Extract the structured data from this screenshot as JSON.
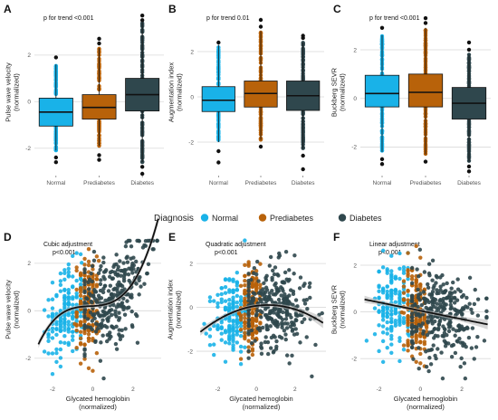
{
  "legend": {
    "title": "Diagnosis",
    "entries": [
      {
        "label": "Normal",
        "color": "#19b2e8"
      },
      {
        "label": "Prediabetes",
        "color": "#b8620a"
      },
      {
        "label": "Diabetes",
        "color": "#2f474d"
      }
    ]
  },
  "chart_data": [
    {
      "panel": "A",
      "type": "box",
      "annotation": "p for trend <0.001",
      "xlabel": "",
      "ylabel": "Pulse wave velocity\n(normalized)",
      "ylim": [
        -3.1,
        3.9
      ],
      "yticks": [
        -2,
        0,
        2
      ],
      "categories": [
        "Normal",
        "Prediabetes",
        "Diabetes"
      ],
      "boxes": [
        {
          "min": -2.1,
          "q1": -1.05,
          "median": -0.45,
          "q3": 0.15,
          "max": 1.6,
          "outliers": [
            -2.4,
            -2.6,
            1.9
          ]
        },
        {
          "min": -1.9,
          "q1": -0.75,
          "median": -0.25,
          "q3": 0.3,
          "max": 2.3,
          "outliers": [
            -2.3,
            -2.5,
            2.5,
            2.7
          ]
        },
        {
          "min": -2.6,
          "q1": -0.4,
          "median": 0.3,
          "q3": 1.0,
          "max": 3.4,
          "outliers": [
            -2.8,
            -3.1,
            3.5,
            3.7
          ]
        }
      ]
    },
    {
      "panel": "B",
      "type": "box",
      "annotation": "p for trend 0.01",
      "xlabel": "",
      "ylabel": "Augmentation index\n(normalized)",
      "ylim": [
        -3.4,
        3.8
      ],
      "yticks": [
        -2,
        0,
        2
      ],
      "categories": [
        "Normal",
        "Prediabetes",
        "Diabetes"
      ],
      "boxes": [
        {
          "min": -2.0,
          "q1": -0.65,
          "median": -0.15,
          "q3": 0.45,
          "max": 2.3,
          "outliers": [
            -2.4,
            -2.9,
            2.4
          ]
        },
        {
          "min": -1.9,
          "q1": -0.45,
          "median": 0.15,
          "q3": 0.7,
          "max": 2.9,
          "outliers": [
            -2.2,
            3.1,
            3.4
          ]
        },
        {
          "min": -2.3,
          "q1": -0.6,
          "median": 0.05,
          "q3": 0.7,
          "max": 2.4,
          "outliers": [
            -2.6,
            -3.2,
            2.6,
            2.7
          ]
        }
      ]
    },
    {
      "panel": "C",
      "type": "box",
      "annotation": "p for trend <0.001",
      "xlabel": "",
      "ylabel": "Buckberg SEVR\n(normalized)",
      "ylim": [
        -3.1,
        3.6
      ],
      "yticks": [
        -2,
        0,
        2
      ],
      "categories": [
        "Normal",
        "Prediabetes",
        "Diabetes"
      ],
      "boxes": [
        {
          "min": -2.2,
          "q1": -0.35,
          "median": 0.2,
          "q3": 0.95,
          "max": 2.6,
          "outliers": [
            -2.5,
            -2.7,
            2.9
          ]
        },
        {
          "min": -2.3,
          "q1": -0.35,
          "median": 0.25,
          "q3": 1.0,
          "max": 2.9,
          "outliers": [
            -2.6,
            3.1,
            3.3
          ]
        },
        {
          "min": -2.6,
          "q1": -0.85,
          "median": -0.2,
          "q3": 0.45,
          "max": 1.8,
          "outliers": [
            -2.8,
            -3.0,
            2.0,
            2.3
          ]
        }
      ]
    },
    {
      "panel": "D",
      "type": "scatter",
      "annotation_line1": "Cubic adjustment",
      "annotation_line2": "p<0.001",
      "xlabel": "Glycated hemoglobin\n(normalized)",
      "ylabel": "Pulse wave velocity\n(normalized)",
      "xlim": [
        -2.9,
        3.4
      ],
      "ylim": [
        -3.0,
        3.1
      ],
      "xticks": [
        -2,
        0,
        2
      ],
      "yticks": [
        -2,
        0,
        2
      ],
      "fit": {
        "type": "cubic",
        "coefficients": [
          0.2,
          0.05,
          0.04,
          0.09
        ]
      }
    },
    {
      "panel": "E",
      "type": "scatter",
      "annotation_line1": "Quadratic adjustment",
      "annotation_line2": "p<0.001",
      "xlabel": "Glycated hemoglobin\n(normalized)",
      "ylabel": "Augmentation index\n(normalized)",
      "xlim": [
        -3.1,
        3.6
      ],
      "ylim": [
        -3.4,
        3.2
      ],
      "xticks": [
        -2,
        0,
        2
      ],
      "yticks": [
        -2,
        0,
        2
      ],
      "fit": {
        "type": "quadratic",
        "coefficients": [
          0.07,
          0.12,
          -0.1
        ]
      }
    },
    {
      "panel": "F",
      "type": "scatter",
      "annotation_line1": "Linear adjustment",
      "annotation_line2": "p<0.001",
      "xlabel": "Glycated hemoglobin\n(normalized)",
      "ylabel": "Buckberg SEVR\n(normalized)",
      "xlim": [
        -2.9,
        3.4
      ],
      "ylim": [
        -3.0,
        3.2
      ],
      "xticks": [
        -2,
        0,
        2
      ],
      "yticks": [
        -2,
        0,
        2
      ],
      "fit": {
        "type": "linear",
        "coefficients": [
          0.05,
          -0.18
        ]
      }
    }
  ]
}
